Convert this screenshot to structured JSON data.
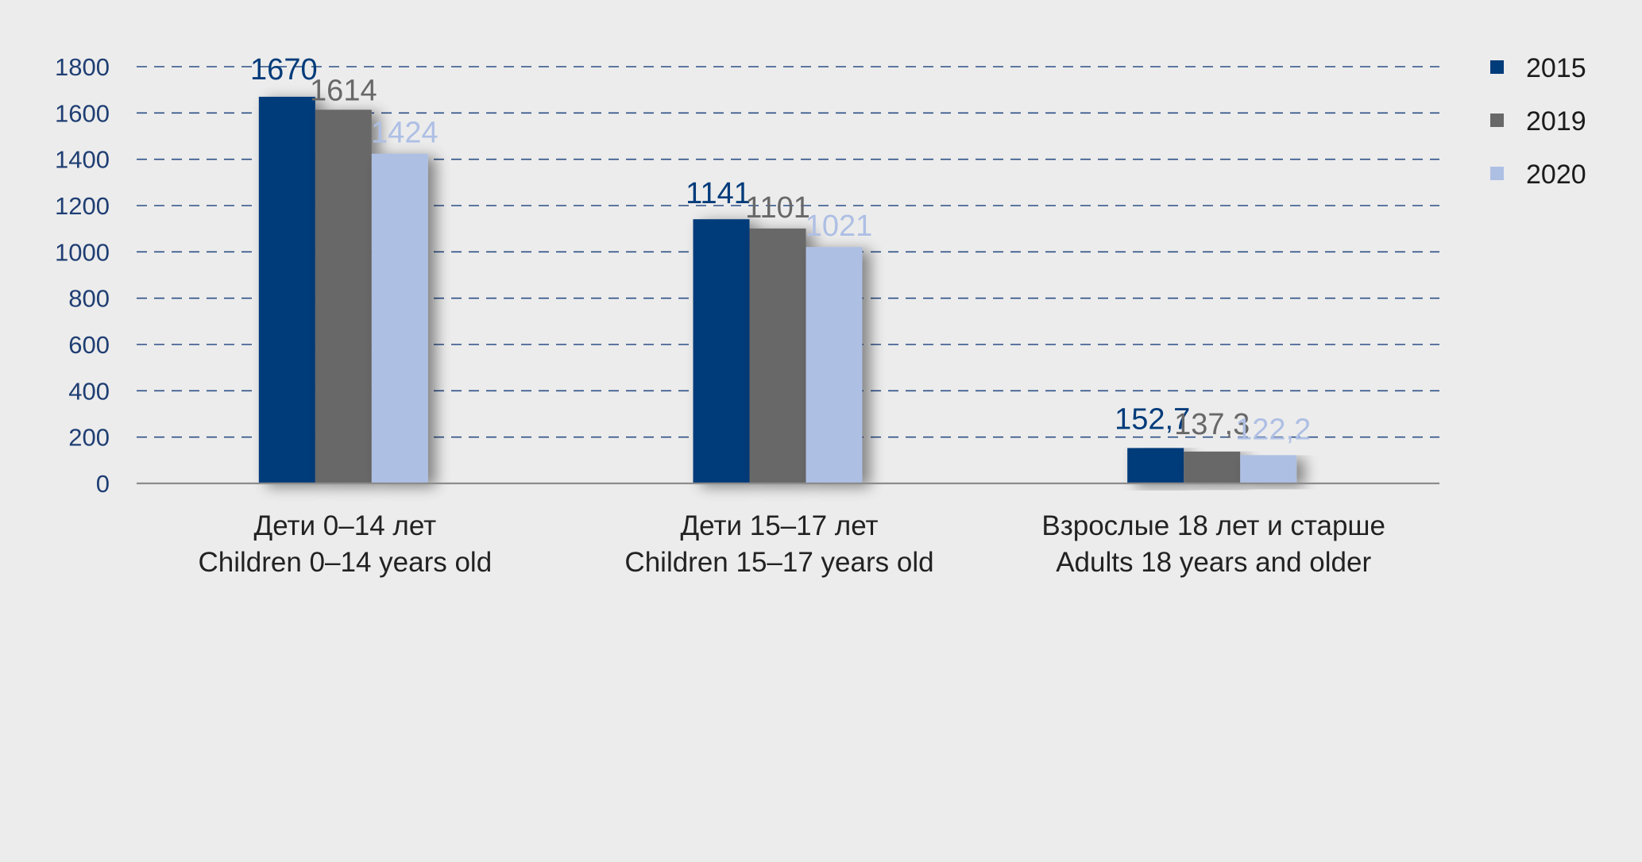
{
  "chart_data": {
    "type": "bar",
    "categories": [
      [
        "Дети 0–14 лет",
        "Children 0–14 years old"
      ],
      [
        "Дети 15–17 лет",
        "Children 15–17 years old"
      ],
      [
        "Взрослые 18 лет и старше",
        "Adults 18 years and older"
      ]
    ],
    "series": [
      {
        "name": "2015",
        "color": "#003b7a",
        "values": [
          1670,
          1141,
          152.7
        ],
        "labels": [
          "1670",
          "1141",
          "152,7"
        ]
      },
      {
        "name": "2019",
        "color": "#686868",
        "values": [
          1614,
          1101,
          137.3
        ],
        "labels": [
          "1614",
          "1101",
          "137,3"
        ]
      },
      {
        "name": "2020",
        "color": "#aebfe4",
        "values": [
          1424,
          1021,
          122.2
        ],
        "labels": [
          "1424",
          "1021",
          "122,2"
        ]
      }
    ],
    "ylim": [
      0,
      1800
    ],
    "yticks": [
      0,
      200,
      400,
      600,
      800,
      1000,
      1200,
      1400,
      1600,
      1800
    ],
    "grid": true,
    "legend_position": "top-right",
    "title": "",
    "xlabel": "",
    "ylabel": ""
  }
}
